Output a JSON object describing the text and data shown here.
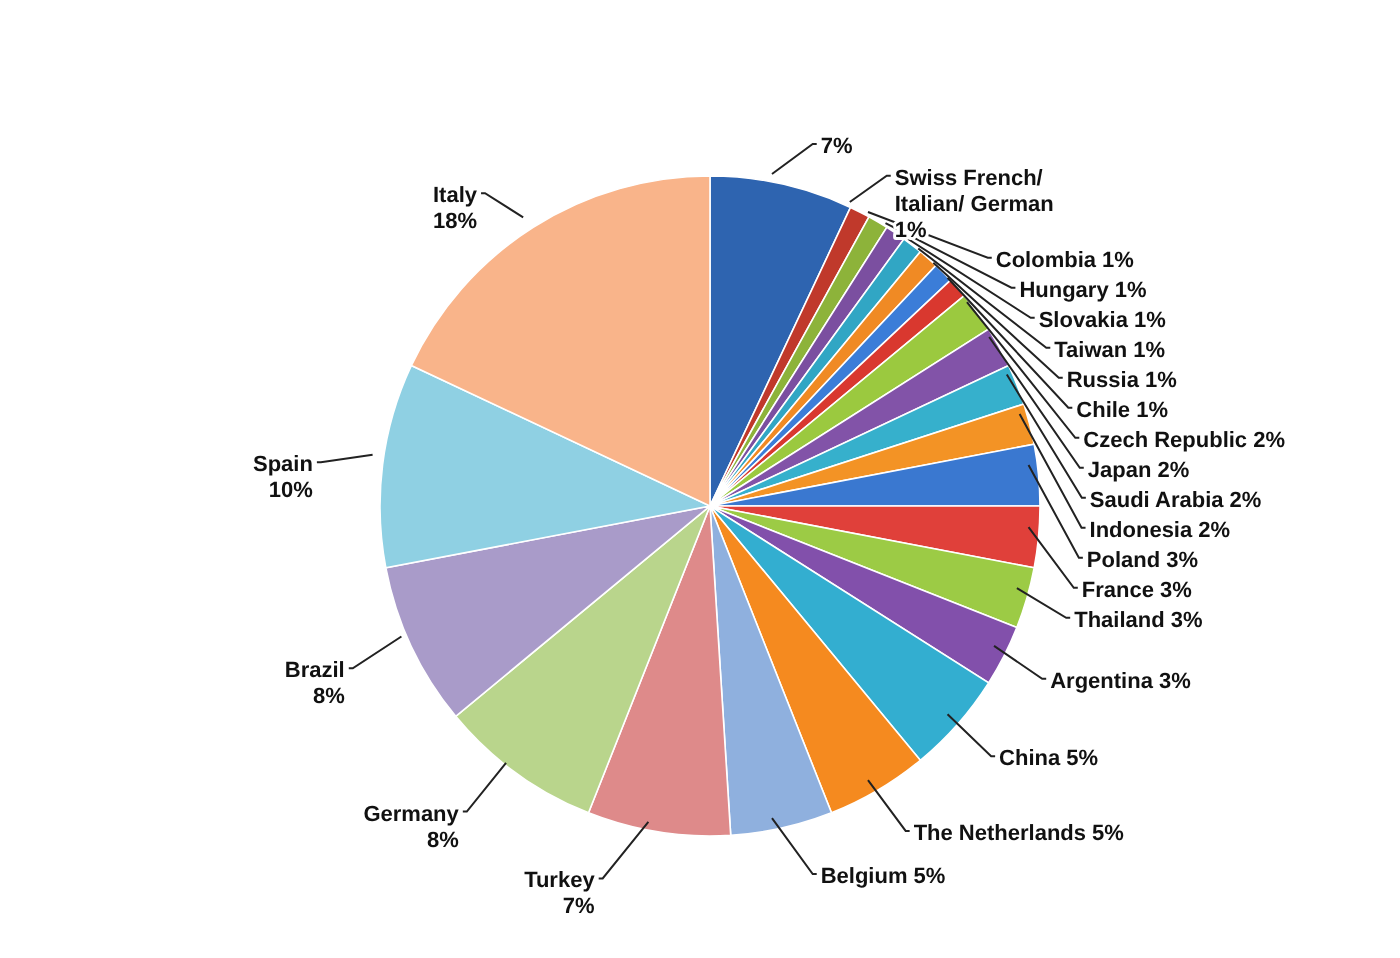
{
  "chart_data": {
    "type": "pie",
    "categories": [
      null,
      "Swiss French/ Italian/ German",
      "Colombia",
      "Hungary",
      "Slovakia",
      "Taiwan",
      "Russia",
      "Chile",
      "Czech Republic",
      "Japan",
      "Saudi Arabia",
      "Indonesia",
      "Poland",
      "France",
      "Thailand",
      "Argentina",
      "China",
      "The Netherlands",
      "Belgium",
      "Turkey",
      "Germany",
      "Brazil",
      "Spain",
      "Italy"
    ],
    "values": [
      7,
      1,
      1,
      1,
      1,
      1,
      1,
      1,
      2,
      2,
      2,
      2,
      3,
      3,
      3,
      3,
      5,
      5,
      5,
      7,
      8,
      8,
      10,
      18
    ],
    "value_labels": [
      "7%",
      "1%",
      "1%",
      "1%",
      "1%",
      "1%",
      "1%",
      "1%",
      "2%",
      "2%",
      "2%",
      "2%",
      "3%",
      "3%",
      "3%",
      "3%",
      "5%",
      "5%",
      "5%",
      "7%",
      "8%",
      "8%",
      "10%",
      "18%"
    ],
    "colors": [
      "#2e64b0",
      "#c0392b",
      "#8db33a",
      "#7b4fa0",
      "#31a6c4",
      "#f08a24",
      "#3b7dd8",
      "#d9382f",
      "#9bc93f",
      "#8253a8",
      "#36b0cc",
      "#f39325",
      "#3a78d0",
      "#e0403a",
      "#9ccb45",
      "#8250ab",
      "#33aed0",
      "#f58a1f",
      "#8fb0de",
      "#de8a8a",
      "#b9d58c",
      "#a99bc9",
      "#8fd0e3",
      "#f9b48a"
    ],
    "legend": false
  }
}
